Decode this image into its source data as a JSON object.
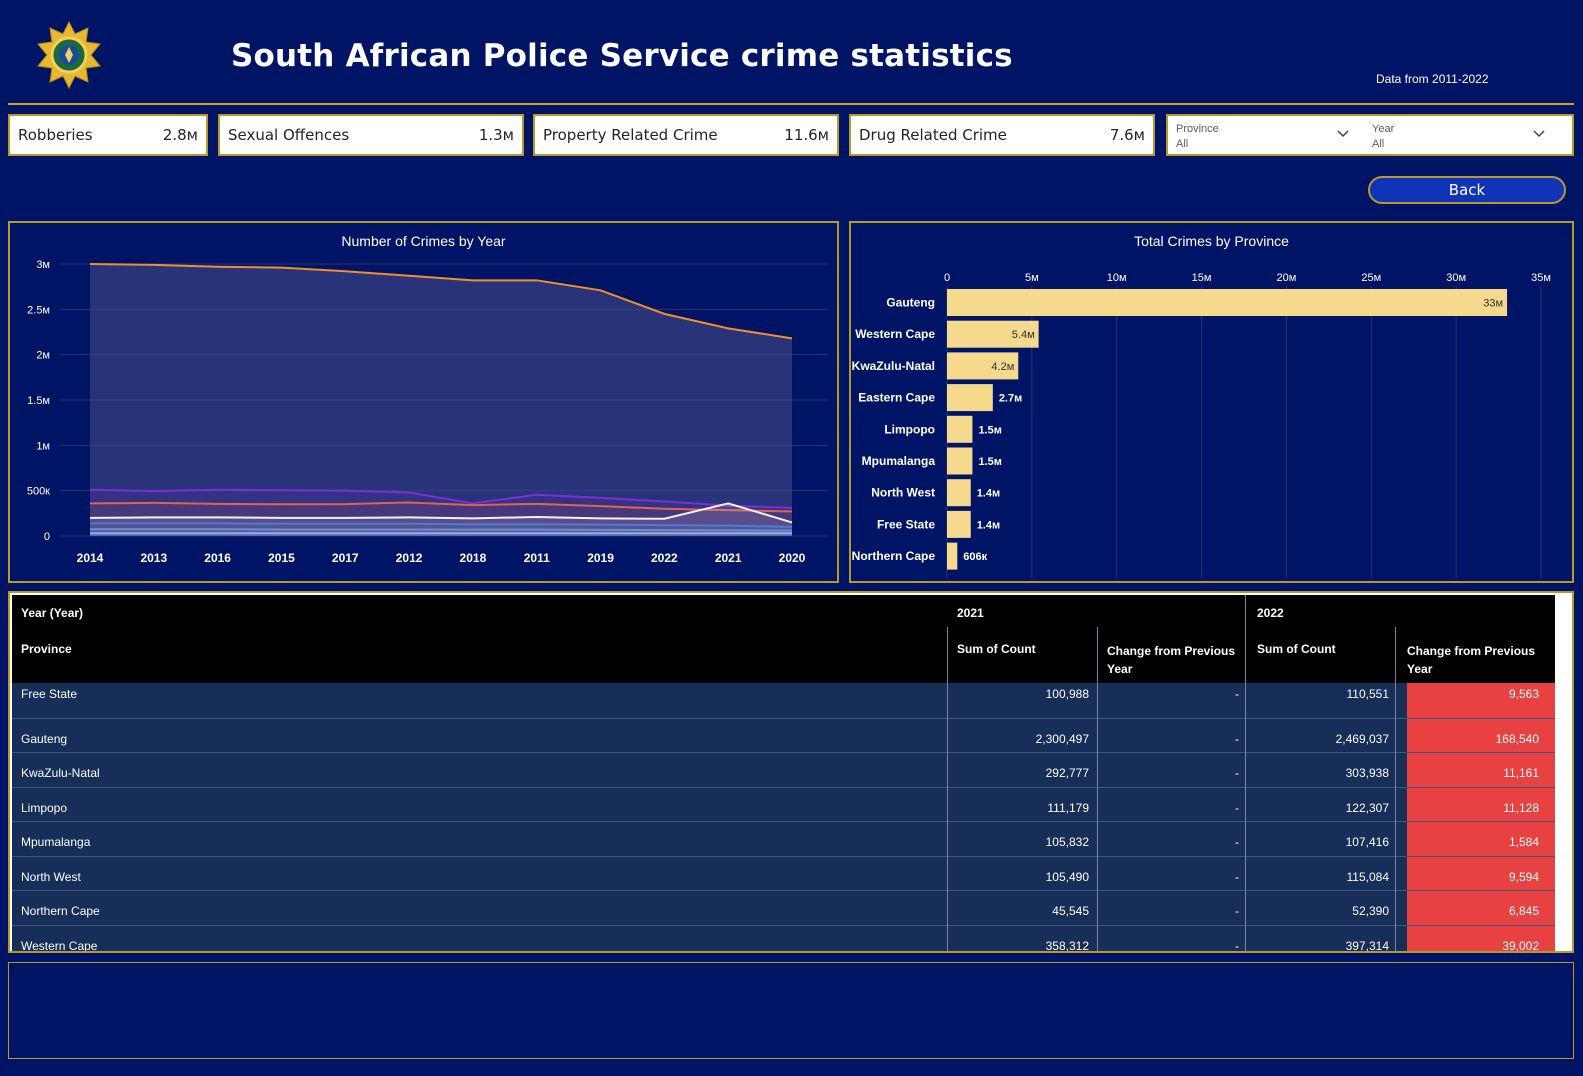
{
  "header": {
    "title": "South African Police Service crime statistics",
    "subtitle": "Data from 2011-2022"
  },
  "kpis": [
    {
      "label": "Robberies",
      "value": "2.8м"
    },
    {
      "label": "Sexual Offences",
      "value": "1.3м"
    },
    {
      "label": "Property Related Crime",
      "value": "11.6м"
    },
    {
      "label": "Drug Related Crime",
      "value": "7.6м"
    }
  ],
  "slicers": [
    {
      "title": "Province",
      "value": "All"
    },
    {
      "title": "Year",
      "value": "All"
    }
  ],
  "back_label": "Back",
  "colors": {
    "background": "#001466",
    "border": "#b89a2a",
    "bar": "#f5d98c",
    "negative": "#e84141"
  },
  "chart_data": [
    {
      "type": "area",
      "title": "Number of Crimes by Year",
      "categories": [
        "2014",
        "2013",
        "2016",
        "2015",
        "2017",
        "2012",
        "2018",
        "2011",
        "2019",
        "2022",
        "2021",
        "2020"
      ],
      "y_ticks": [
        "3м",
        "2.5м",
        "2м",
        "1.5м",
        "1м",
        "500к",
        "0"
      ],
      "ylim": [
        0,
        3000000
      ],
      "series": [
        {
          "color": "#f28e2c",
          "values": [
            3000000,
            2990000,
            2970000,
            2960000,
            2920000,
            2870000,
            2820000,
            2820000,
            2710000,
            2450000,
            2290000,
            2180000
          ]
        },
        {
          "color": "#7b2fd6",
          "values": [
            510000,
            495000,
            510000,
            505000,
            500000,
            480000,
            360000,
            455000,
            420000,
            380000,
            335000,
            310000
          ]
        },
        {
          "color": "#e0654a",
          "values": [
            360000,
            365000,
            355000,
            350000,
            352000,
            370000,
            340000,
            355000,
            330000,
            300000,
            285000,
            270000
          ]
        },
        {
          "color": "#f2f2f2",
          "values": [
            200000,
            205000,
            205000,
            200000,
            200000,
            205000,
            195000,
            210000,
            195000,
            190000,
            360000,
            150000
          ]
        },
        {
          "color": "#4a7fd4",
          "values": [
            140000,
            140000,
            140000,
            135000,
            135000,
            135000,
            130000,
            130000,
            125000,
            120000,
            115000,
            100000
          ]
        },
        {
          "color": "#6a8fd8",
          "values": [
            75000,
            75000,
            75000,
            72000,
            72000,
            72000,
            70000,
            70000,
            68000,
            65000,
            62000,
            60000
          ]
        },
        {
          "color": "#8fb0e8",
          "values": [
            30000,
            30000,
            30000,
            30000,
            30000,
            30000,
            30000,
            30000,
            30000,
            30000,
            30000,
            30000
          ]
        }
      ]
    },
    {
      "type": "bar",
      "orientation": "horizontal",
      "title": "Total Crimes by Province",
      "categories": [
        "Gauteng",
        "Western Cape",
        "KwaZulu-Natal",
        "Eastern Cape",
        "Limpopo",
        "Mpumalanga",
        "North West",
        "Free State",
        "Northern Cape"
      ],
      "values": [
        33000000,
        5400000,
        4200000,
        2700000,
        1500000,
        1500000,
        1400000,
        1400000,
        606000
      ],
      "labels": [
        "33м",
        "5.4м",
        "4.2м",
        "2.7м",
        "1.5м",
        "1.5м",
        "1.4м",
        "1.4м",
        "606к"
      ],
      "x_ticks": [
        "0",
        "5м",
        "10м",
        "15м",
        "20м",
        "25м",
        "30м",
        "35м"
      ],
      "xlim": [
        0,
        35000000
      ]
    }
  ],
  "table": {
    "row_header_top": "Year (Year)",
    "row_header": "Province",
    "years": [
      "2021",
      "2022"
    ],
    "col_sum": "Sum of Count",
    "col_change": "Change from Previous Year",
    "rows": [
      {
        "province": "Free State",
        "sum_2021": "100,988",
        "chg_2021": "-",
        "sum_2022": "110,551",
        "chg_2022": "9,563"
      },
      {
        "province": "Gauteng",
        "sum_2021": "2,300,497",
        "chg_2021": "-",
        "sum_2022": "2,469,037",
        "chg_2022": "168,540"
      },
      {
        "province": "KwaZulu-Natal",
        "sum_2021": "292,777",
        "chg_2021": "-",
        "sum_2022": "303,938",
        "chg_2022": "11,161"
      },
      {
        "province": "Limpopo",
        "sum_2021": "111,179",
        "chg_2021": "-",
        "sum_2022": "122,307",
        "chg_2022": "11,128"
      },
      {
        "province": "Mpumalanga",
        "sum_2021": "105,832",
        "chg_2021": "-",
        "sum_2022": "107,416",
        "chg_2022": "1,584"
      },
      {
        "province": "North West",
        "sum_2021": "105,490",
        "chg_2021": "-",
        "sum_2022": "115,084",
        "chg_2022": "9,594"
      },
      {
        "province": "Northern Cape",
        "sum_2021": "45,545",
        "chg_2021": "-",
        "sum_2022": "52,390",
        "chg_2022": "6,845"
      },
      {
        "province": "Western Cape",
        "sum_2021": "358,312",
        "chg_2021": "-",
        "sum_2022": "397,314",
        "chg_2022": "39,002"
      }
    ]
  }
}
